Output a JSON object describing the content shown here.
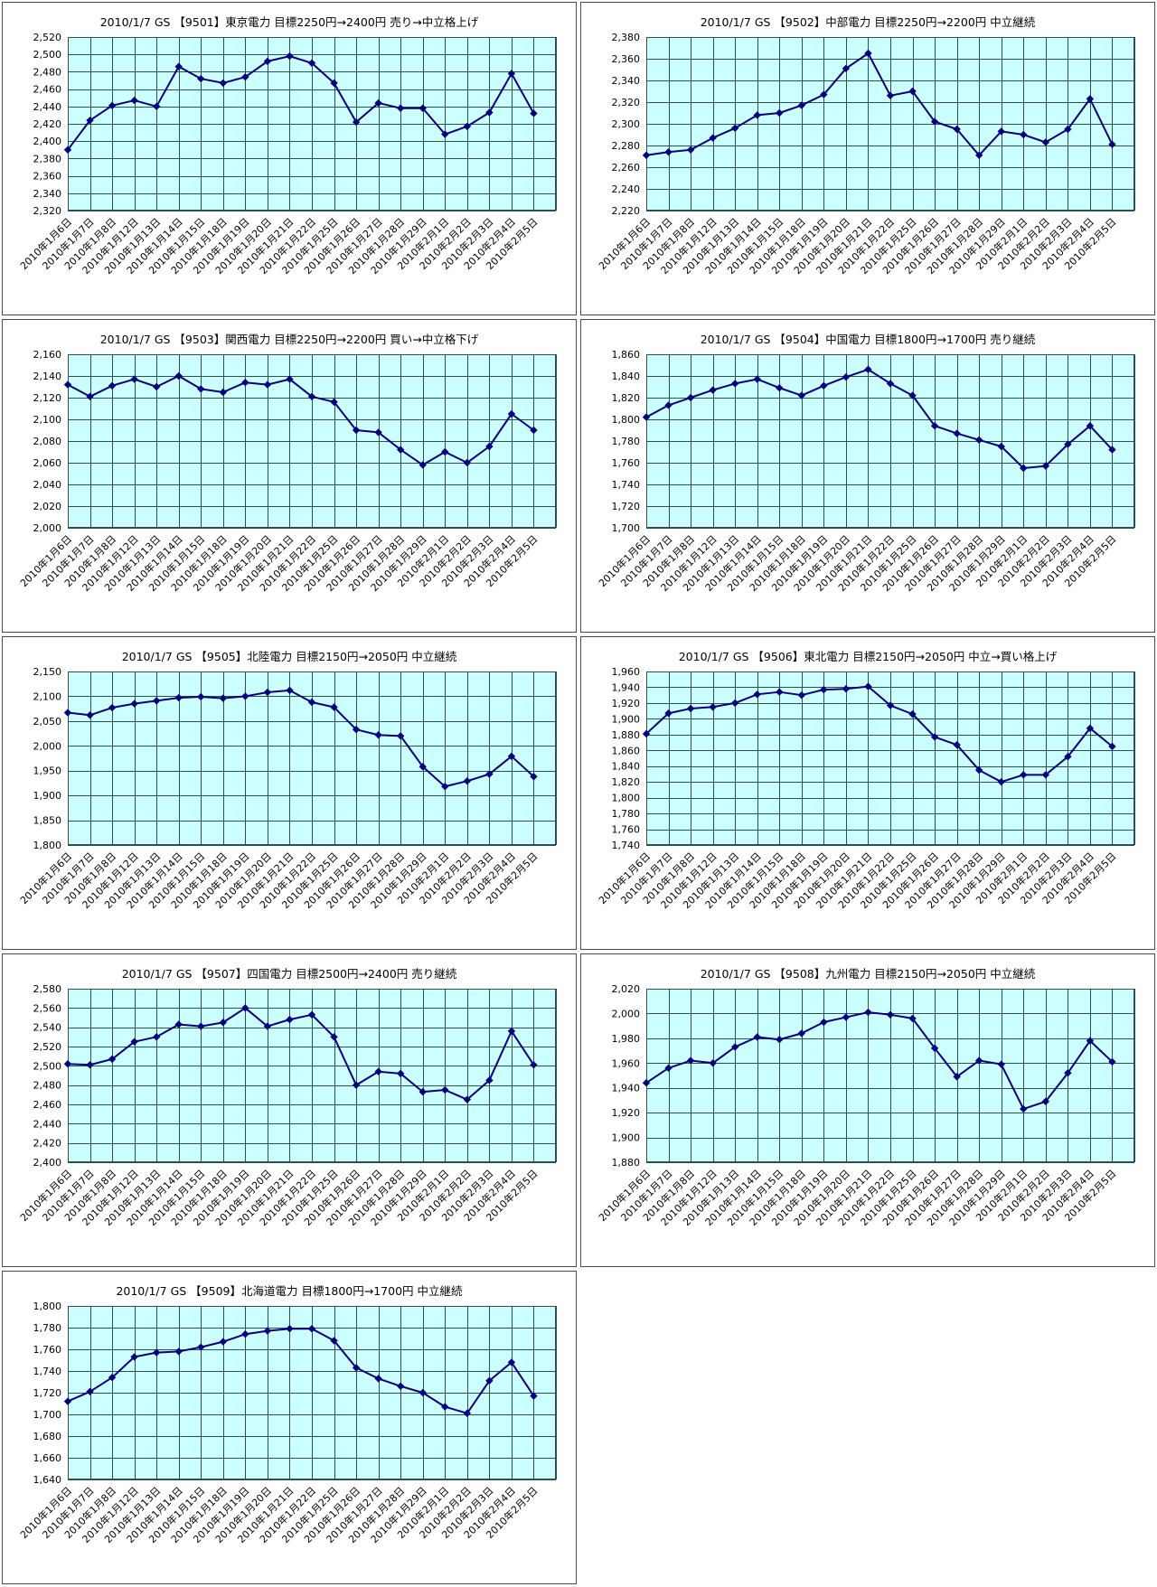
{
  "page": {
    "background_color": "#ffffff",
    "layout": "grid of 9 stock-price line charts, 2 columns x 5 rows"
  },
  "chart_data": {
    "type": "line",
    "legend": "none",
    "grid": "on",
    "style": {
      "plot_background": "#ccffff",
      "grid_color": "#2f4f4f",
      "line_color": "#000080",
      "marker": "diamond",
      "panel_border_color": "#4a4a4a"
    },
    "categories": [
      "2010年1月6日",
      "2010年1月7日",
      "2010年1月8日",
      "2010年1月12日",
      "2010年1月13日",
      "2010年1月14日",
      "2010年1月15日",
      "2010年1月18日",
      "2010年1月19日",
      "2010年1月20日",
      "2010年1月21日",
      "2010年1月22日",
      "2010年1月25日",
      "2010年1月26日",
      "2010年1月27日",
      "2010年1月28日",
      "2010年1月29日",
      "2010年2月1日",
      "2010年2月2日",
      "2010年2月3日",
      "2010年2月4日",
      "2010年2月5日"
    ],
    "charts": [
      {
        "id": "9501",
        "title": "2010/1/7 GS 【9501】東京電力 目標2250円→2400円 売り→中立格上げ",
        "ylim": [
          2320,
          2520
        ],
        "y_step": 20,
        "values": [
          2390,
          2424,
          2441,
          2447,
          2440,
          2486,
          2472,
          2467,
          2474,
          2492,
          2498,
          2490,
          2467,
          2422,
          2444,
          2438,
          2438,
          2408,
          2417,
          2433,
          2478,
          2432
        ]
      },
      {
        "id": "9502",
        "title": "2010/1/7 GS 【9502】中部電力 目標2250円→2200円 中立継続",
        "ylim": [
          2220,
          2380
        ],
        "y_step": 20,
        "values": [
          2271,
          2274,
          2276,
          2287,
          2296,
          2308,
          2310,
          2317,
          2327,
          2351,
          2365,
          2326,
          2330,
          2302,
          2295,
          2271,
          2293,
          2290,
          2283,
          2295,
          2323,
          2281
        ]
      },
      {
        "id": "9503",
        "title": "2010/1/7 GS 【9503】関西電力 目標2250円→2200円 買い→中立格下げ",
        "ylim": [
          2000,
          2160
        ],
        "y_step": 20,
        "values": [
          2132,
          2121,
          2131,
          2137,
          2130,
          2140,
          2128,
          2125,
          2134,
          2132,
          2137,
          2121,
          2116,
          2090,
          2088,
          2072,
          2058,
          2070,
          2060,
          2075,
          2105,
          2090
        ]
      },
      {
        "id": "9504",
        "title": "2010/1/7 GS 【9504】中国電力 目標1800円→1700円 売り継続",
        "ylim": [
          1700,
          1860
        ],
        "y_step": 20,
        "values": [
          1802,
          1813,
          1820,
          1827,
          1833,
          1837,
          1829,
          1822,
          1831,
          1839,
          1846,
          1833,
          1822,
          1794,
          1787,
          1781,
          1775,
          1755,
          1757,
          1777,
          1794,
          1772
        ]
      },
      {
        "id": "9505",
        "title": "2010/1/7 GS 【9505】北陸電力 目標2150円→2050円 中立継続",
        "ylim": [
          1800,
          2150
        ],
        "y_step": 50,
        "values": [
          2067,
          2062,
          2077,
          2085,
          2091,
          2097,
          2099,
          2096,
          2100,
          2108,
          2112,
          2088,
          2078,
          2033,
          2022,
          2020,
          1958,
          1918,
          1929,
          1943,
          1979,
          1938
        ]
      },
      {
        "id": "9506",
        "title": "2010/1/7 GS 【9506】東北電力 目標2150円→2050円 中立→買い格上げ",
        "ylim": [
          1740,
          1960
        ],
        "y_step": 20,
        "values": [
          1881,
          1907,
          1913,
          1915,
          1920,
          1931,
          1934,
          1930,
          1937,
          1938,
          1941,
          1917,
          1906,
          1877,
          1867,
          1835,
          1820,
          1829,
          1829,
          1852,
          1888,
          1865
        ]
      },
      {
        "id": "9507",
        "title": "2010/1/7 GS 【9507】四国電力 目標2500円→2400円 売り継続",
        "ylim": [
          2400,
          2580
        ],
        "y_step": 20,
        "values": [
          2502,
          2501,
          2507,
          2525,
          2530,
          2543,
          2541,
          2545,
          2560,
          2541,
          2548,
          2553,
          2530,
          2480,
          2494,
          2492,
          2473,
          2475,
          2465,
          2485,
          2536,
          2501
        ]
      },
      {
        "id": "9508",
        "title": "2010/1/7 GS 【9508】九州電力 目標2150円→2050円 中立継続",
        "ylim": [
          1880,
          2020
        ],
        "y_step": 20,
        "values": [
          1944,
          1956,
          1962,
          1960,
          1973,
          1981,
          1979,
          1984,
          1993,
          1997,
          2001,
          1999,
          1996,
          1972,
          1949,
          1962,
          1959,
          1923,
          1929,
          1952,
          1978,
          1961
        ]
      },
      {
        "id": "9509",
        "title": "2010/1/7 GS 【9509】北海道電力 目標1800円→1700円 中立継続",
        "ylim": [
          1640,
          1800
        ],
        "y_step": 20,
        "values": [
          1712,
          1721,
          1734,
          1753,
          1757,
          1758,
          1762,
          1767,
          1774,
          1777,
          1779,
          1779,
          1768,
          1743,
          1733,
          1726,
          1720,
          1707,
          1701,
          1731,
          1748,
          1717
        ]
      }
    ]
  }
}
